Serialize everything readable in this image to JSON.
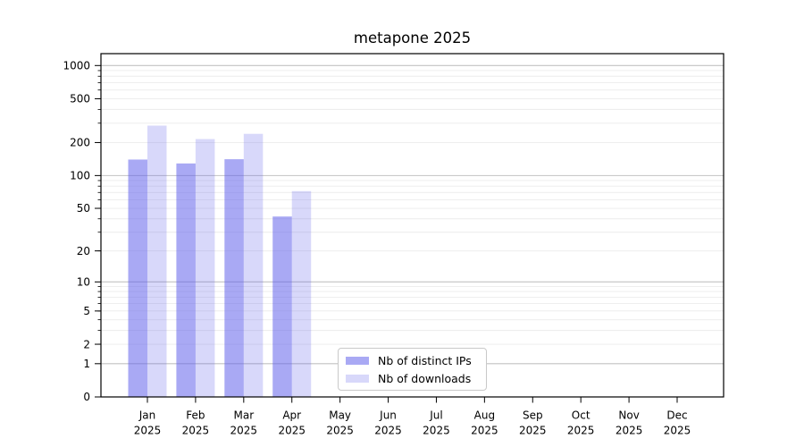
{
  "figure": {
    "background": "#ffffff",
    "axis_color": "#000000",
    "text_color": "#000000"
  },
  "chart_data": {
    "type": "bar",
    "title": "metapone 2025",
    "categories": [
      "Jan",
      "Feb",
      "Mar",
      "Apr",
      "May",
      "Jun",
      "Jul",
      "Aug",
      "Sep",
      "Oct",
      "Nov",
      "Dec"
    ],
    "x_tick_second_line": "2025",
    "series": [
      {
        "name": "Nb of distinct IPs",
        "values": [
          140,
          129,
          141,
          42,
          null,
          null,
          null,
          null,
          null,
          null,
          null,
          null
        ],
        "base_color": "#6262eb",
        "alpha": 0.55,
        "display_color": "#a9a9f4"
      },
      {
        "name": "Nb of downloads",
        "values": [
          285,
          215,
          240,
          72,
          null,
          null,
          null,
          null,
          null,
          null,
          null,
          null
        ],
        "base_color": "#6262eb",
        "alpha": 0.25,
        "display_color": "#d9d9f9"
      }
    ],
    "xlabel": "",
    "ylabel": "",
    "yscale": "symlog (position proportional to ln(1+v))",
    "yticks": [
      0,
      1,
      2,
      5,
      10,
      20,
      50,
      100,
      200,
      500,
      1000
    ],
    "ylim": [
      0,
      1280
    ],
    "grid": {
      "enabled": true,
      "major_values": [
        1,
        10,
        100,
        1000
      ],
      "minor_values": [
        2,
        3,
        4,
        5,
        6,
        7,
        8,
        9,
        20,
        30,
        40,
        50,
        60,
        70,
        80,
        90,
        200,
        300,
        400,
        500,
        600,
        700,
        800,
        900
      ],
      "major_color": "#c2c2c2",
      "minor_color": "#ebebeb"
    },
    "legend": {
      "position": "inside bottom-center-right",
      "border_color": "#c9c9c9",
      "background": "#ffffff"
    }
  }
}
